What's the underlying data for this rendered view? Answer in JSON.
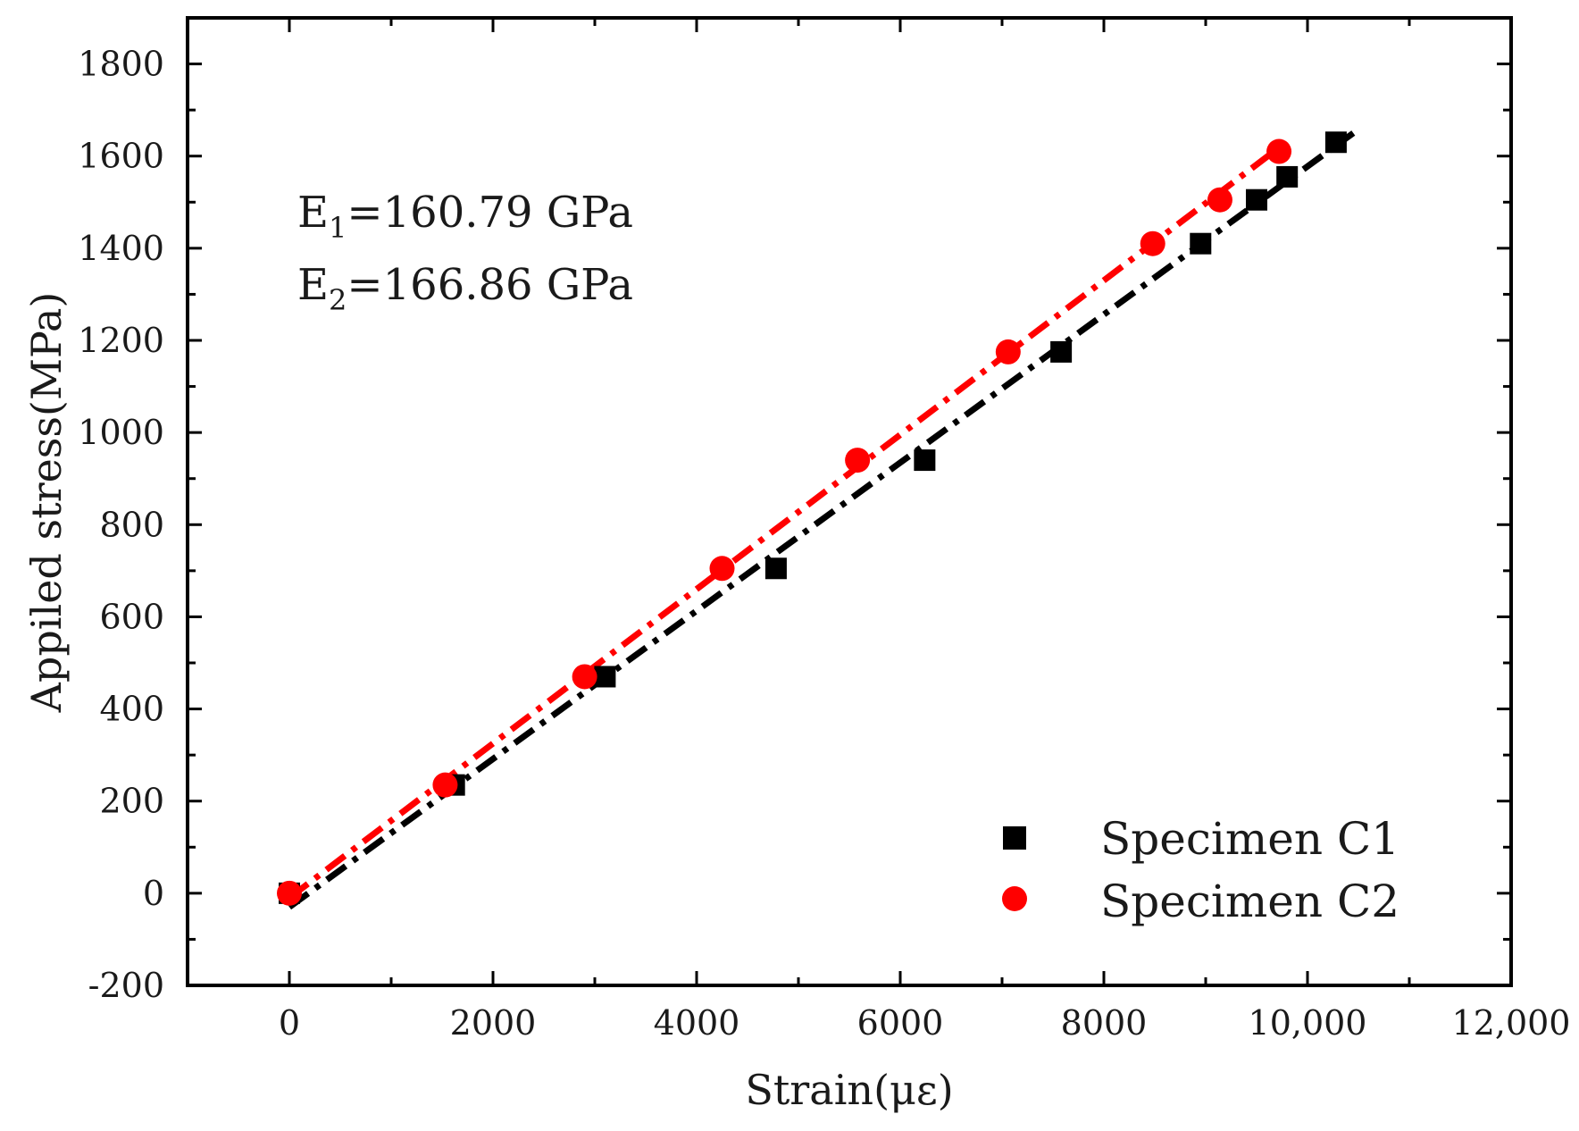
{
  "chart_data": {
    "type": "scatter",
    "title": "",
    "xlabel": "Strain(με)",
    "ylabel": "Appiled stress(MPa)",
    "xlim": [
      -1000,
      12000
    ],
    "ylim": [
      -200,
      1900
    ],
    "x_ticks": [
      0,
      2000,
      4000,
      6000,
      8000,
      10000,
      12000
    ],
    "x_tick_labels": [
      "0",
      "2000",
      "4000",
      "6000",
      "8000",
      "10,000",
      "12,000"
    ],
    "y_ticks": [
      -200,
      0,
      200,
      400,
      600,
      800,
      1000,
      1200,
      1400,
      1600,
      1800
    ],
    "y_tick_labels": [
      "-200",
      "0",
      "200",
      "400",
      "600",
      "800",
      "1000",
      "1200",
      "1400",
      "1600",
      "1800"
    ],
    "legend_position": "bottom-right",
    "series": [
      {
        "name": "Specimen C1",
        "marker": "square",
        "color": "#000000",
        "x": [
          0,
          1620,
          3100,
          4780,
          6240,
          7580,
          8950,
          9500,
          9800,
          10280
        ],
        "y": [
          0,
          235,
          470,
          705,
          940,
          1175,
          1410,
          1505,
          1555,
          1630
        ],
        "fit": {
          "x": [
            0,
            10450
          ],
          "y": [
            -30,
            1650
          ],
          "style": "dash-dot"
        }
      },
      {
        "name": "Specimen C2",
        "marker": "circle",
        "color": "#ff0000",
        "x": [
          0,
          1530,
          2900,
          4250,
          5580,
          7060,
          8480,
          9140,
          9720
        ],
        "y": [
          0,
          235,
          470,
          705,
          940,
          1175,
          1410,
          1505,
          1610
        ],
        "fit": {
          "x": [
            0,
            9700
          ],
          "y": [
            -10,
            1615
          ],
          "style": "dash-dot"
        }
      }
    ],
    "annotations": [
      {
        "main": "E",
        "sub": "1",
        "rest": "=160.79 GPa"
      },
      {
        "main": "E",
        "sub": "2",
        "rest": "=166.86 GPa"
      }
    ]
  }
}
